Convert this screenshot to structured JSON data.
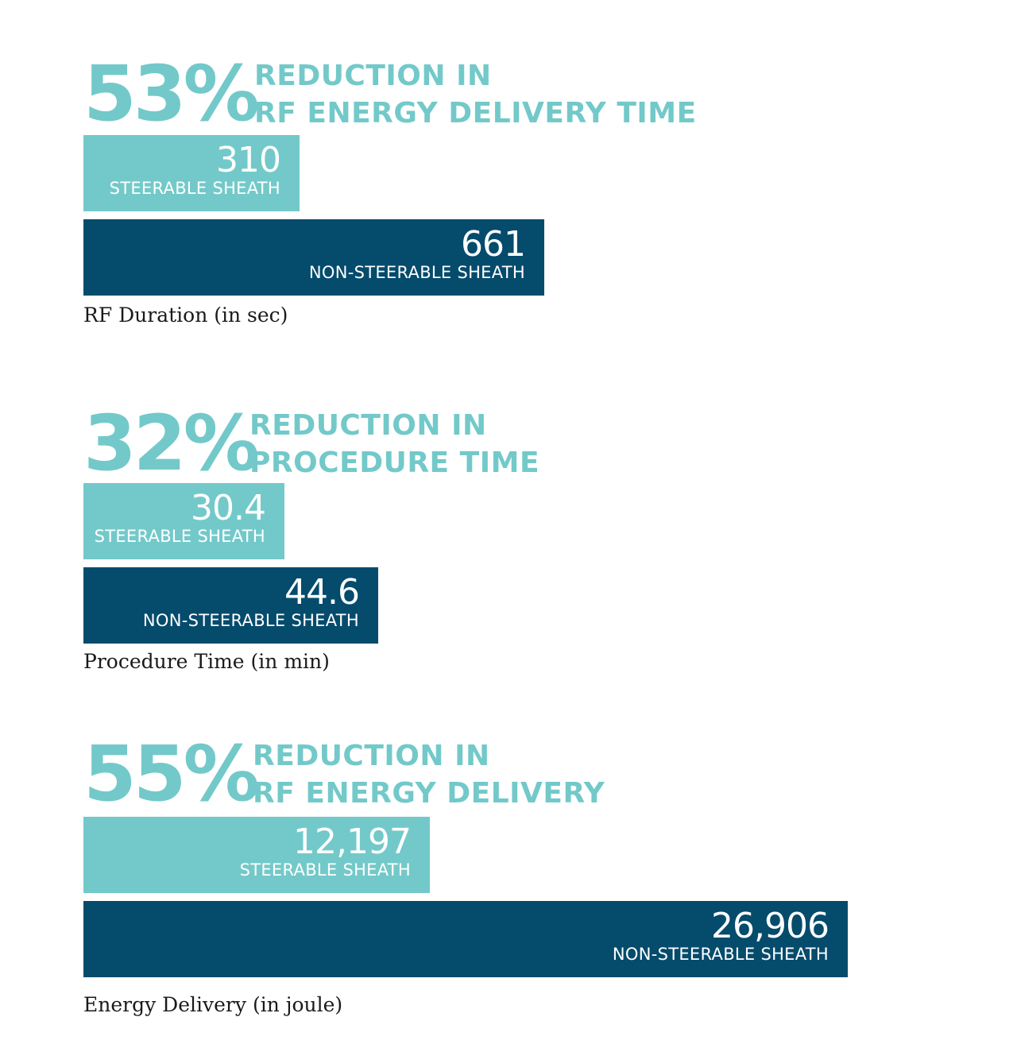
{
  "colors": {
    "steerable": "#73c9c9",
    "non_steerable": "#054b6c",
    "headline": "#73c9c9"
  },
  "chart_data": [
    {
      "type": "bar",
      "orientation": "horizontal",
      "headline_percent": "53%",
      "headline_line1": "REDUCTION IN",
      "headline_line2": "RF ENERGY DELIVERY TIME",
      "categories": [
        "STEERABLE SHEATH",
        "NON-STEERABLE SHEATH"
      ],
      "values": [
        310,
        661
      ],
      "value_labels": [
        "310",
        "661"
      ],
      "xlim": [
        0,
        1100
      ],
      "caption": "RF Duration (in sec)"
    },
    {
      "type": "bar",
      "orientation": "horizontal",
      "headline_percent": "32%",
      "headline_line1": "REDUCTION IN",
      "headline_line2": "PROCEDURE TIME",
      "categories": [
        "STEERABLE SHEATH",
        "NON-STEERABLE SHEATH"
      ],
      "values": [
        30.4,
        44.6
      ],
      "value_labels": [
        "30.4",
        "44.6"
      ],
      "xlim": [
        0,
        116
      ],
      "caption": "Procedure Time (in min)"
    },
    {
      "type": "bar",
      "orientation": "horizontal",
      "headline_percent": "55%",
      "headline_line1": "REDUCTION IN",
      "headline_line2": "RF ENERGY DELIVERY",
      "categories": [
        "STEERABLE SHEATH",
        "NON-STEERABLE SHEATH"
      ],
      "values": [
        12197,
        26906
      ],
      "value_labels": [
        "12,197",
        "26,906"
      ],
      "xlim": [
        0,
        27000
      ],
      "caption": "Energy Delivery (in joule)"
    }
  ]
}
